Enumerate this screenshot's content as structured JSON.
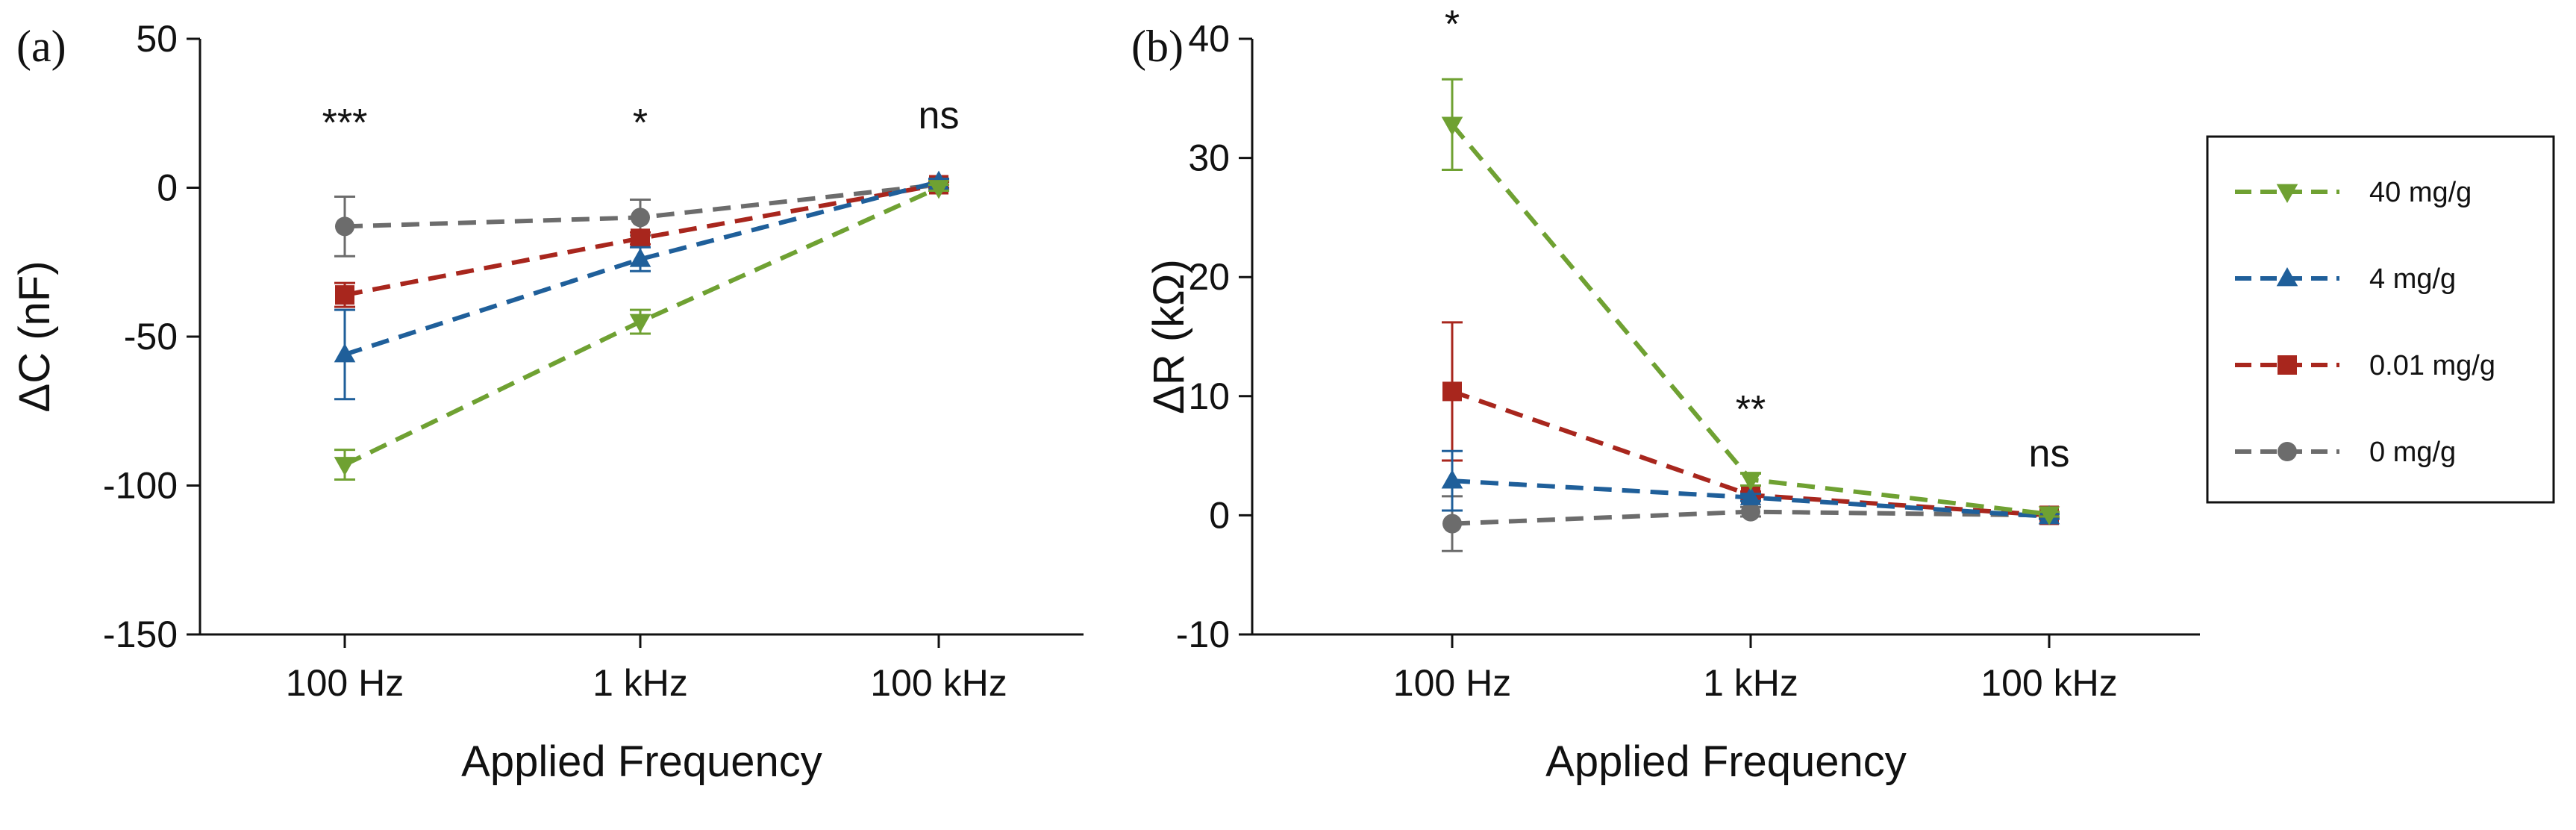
{
  "colors": {
    "40": "#6fa132",
    "4": "#1f5f9a",
    "0.01": "#a8261d",
    "0": "#6c6c6c"
  },
  "legend": {
    "items": [
      {
        "label": "40 mg/g",
        "key": "40",
        "marker": "triangle-down-icon"
      },
      {
        "label": "4 mg/g",
        "key": "4",
        "marker": "triangle-up-icon"
      },
      {
        "label": "0.01 mg/g",
        "key": "0.01",
        "marker": "square-icon"
      },
      {
        "label": "0 mg/g",
        "key": "0",
        "marker": "circle-icon"
      }
    ]
  },
  "chart_data": [
    {
      "type": "line",
      "panel": "(a)",
      "title": "",
      "xlabel": "Applied Frequency",
      "ylabel": "ΔC (nF)",
      "categories": [
        "100 Hz",
        "1 kHz",
        "100 kHz"
      ],
      "ylim": [
        -150,
        50
      ],
      "yticks": [
        50,
        0,
        -50,
        -100,
        -150
      ],
      "ytick_labels": [
        "50",
        "0",
        "-50",
        "-100",
        "-150"
      ],
      "significance": [
        "***",
        "*",
        "ns"
      ],
      "series": [
        {
          "name": "0 mg/g",
          "key": "0",
          "marker": "circle",
          "values": [
            -13,
            -10,
            1
          ],
          "errors": [
            10,
            6,
            1
          ]
        },
        {
          "name": "0.01 mg/g",
          "key": "0.01",
          "marker": "square",
          "values": [
            -36,
            -17,
            1
          ],
          "errors": [
            4,
            2,
            1
          ]
        },
        {
          "name": "4 mg/g",
          "key": "4",
          "marker": "triangle-up",
          "values": [
            -56,
            -24,
            2
          ],
          "errors": [
            15,
            4,
            1
          ]
        },
        {
          "name": "40 mg/g",
          "key": "40",
          "marker": "triangle-down",
          "values": [
            -93,
            -45,
            0
          ],
          "errors": [
            5,
            4,
            1
          ]
        }
      ]
    },
    {
      "type": "line",
      "panel": "(b)",
      "title": "",
      "xlabel": "Applied Frequency",
      "ylabel": "ΔR (kΩ)",
      "categories": [
        "100 Hz",
        "1 kHz",
        "100 kHz"
      ],
      "ylim": [
        -10,
        40
      ],
      "yticks": [
        40,
        30,
        20,
        10,
        0,
        -10
      ],
      "ytick_labels": [
        "40",
        "30",
        "20",
        "10",
        "0",
        "-10"
      ],
      "significance": [
        "*",
        "**",
        "ns"
      ],
      "series": [
        {
          "name": "0 mg/g",
          "key": "0",
          "marker": "circle",
          "values": [
            -0.7,
            0.3,
            0
          ],
          "errors": [
            2.3,
            0.4,
            0.2
          ]
        },
        {
          "name": "0.01 mg/g",
          "key": "0.01",
          "marker": "square",
          "values": [
            10.4,
            1.7,
            0
          ],
          "errors": [
            5.8,
            0.3,
            0.2
          ]
        },
        {
          "name": "4 mg/g",
          "key": "4",
          "marker": "triangle-up",
          "values": [
            2.9,
            1.5,
            -0.1
          ],
          "errors": [
            2.5,
            0.3,
            0.2
          ]
        },
        {
          "name": "40 mg/g",
          "key": "40",
          "marker": "triangle-down",
          "values": [
            32.8,
            3,
            0.1
          ],
          "errors": [
            3.8,
            0.5,
            0.2
          ]
        }
      ]
    }
  ]
}
